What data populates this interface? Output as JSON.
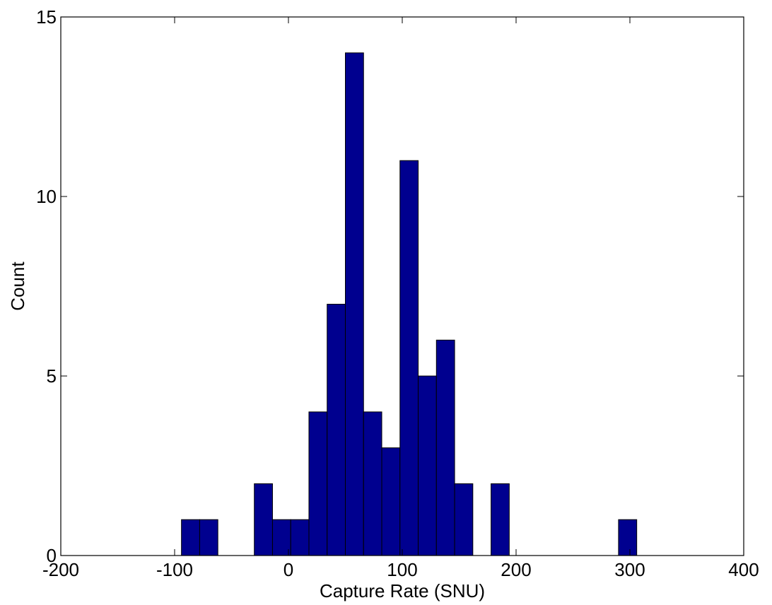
{
  "chart_data": {
    "type": "bar",
    "title": "",
    "xlabel": "Capture Rate (SNU)",
    "ylabel": "Count",
    "xlim": [
      -200,
      400
    ],
    "ylim": [
      0,
      15
    ],
    "xticks": [
      -200,
      -100,
      0,
      100,
      200,
      300,
      400
    ],
    "yticks": [
      0,
      5,
      10,
      15
    ],
    "bin_width": 16,
    "colors": {
      "bar_fill": "#00008f",
      "bar_edge": "#000000"
    },
    "bins": [
      {
        "x0": -94,
        "x1": -78,
        "count": 1
      },
      {
        "x0": -78,
        "x1": -62,
        "count": 1
      },
      {
        "x0": -30,
        "x1": -14,
        "count": 2
      },
      {
        "x0": -14,
        "x1": 2,
        "count": 1
      },
      {
        "x0": 2,
        "x1": 18,
        "count": 1
      },
      {
        "x0": 18,
        "x1": 34,
        "count": 4
      },
      {
        "x0": 34,
        "x1": 50,
        "count": 7
      },
      {
        "x0": 50,
        "x1": 66,
        "count": 14
      },
      {
        "x0": 66,
        "x1": 82,
        "count": 4
      },
      {
        "x0": 82,
        "x1": 98,
        "count": 3
      },
      {
        "x0": 98,
        "x1": 114,
        "count": 11
      },
      {
        "x0": 114,
        "x1": 130,
        "count": 5
      },
      {
        "x0": 130,
        "x1": 146,
        "count": 6
      },
      {
        "x0": 146,
        "x1": 162,
        "count": 2
      },
      {
        "x0": 178,
        "x1": 194,
        "count": 2
      },
      {
        "x0": 290,
        "x1": 306,
        "count": 1
      }
    ]
  }
}
